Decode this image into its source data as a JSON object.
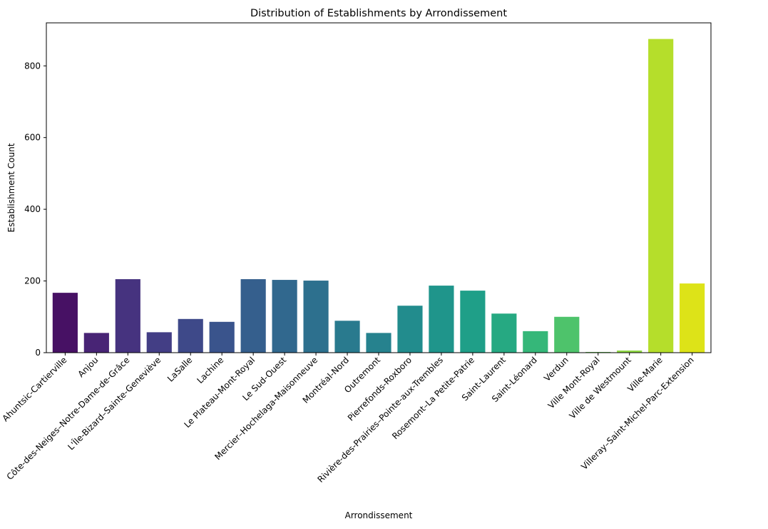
{
  "chart_data": {
    "type": "bar",
    "title": "Distribution of Establishments by Arrondissement",
    "xlabel": "Arrondissement",
    "ylabel": "Establishment Count",
    "ylim": [
      0,
      920
    ],
    "yticks": [
      0,
      200,
      400,
      600,
      800
    ],
    "grid": false,
    "legend": "none",
    "palette": "viridis",
    "categories": [
      "Ahuntsic-Cartierville",
      "Anjou",
      "Côte-des-Neiges–Notre-Dame-de-Grâce",
      "L'Île-Bizard–Sainte-Geneviève",
      "LaSalle",
      "Lachine",
      "Le Plateau-Mont-Royal",
      "Le Sud-Ouest",
      "Mercier–Hochelaga-Maisonneuve",
      "Montréal-Nord",
      "Outremont",
      "Pierrefonds-Roxboro",
      "Rivière-des-Prairies–Pointe-aux-Trembles",
      "Rosemont–La Petite-Patrie",
      "Saint-Laurent",
      "Saint-Léonard",
      "Verdun",
      "Ville Mont-Royal",
      "Ville de Westmount",
      "Ville-Marie",
      "Villeray–Saint-Michel-Parc-Extension"
    ],
    "values": [
      167,
      55,
      205,
      57,
      94,
      86,
      205,
      203,
      201,
      89,
      55,
      131,
      187,
      173,
      109,
      60,
      100,
      2,
      6,
      875,
      193
    ],
    "colors": [
      "#471164",
      "#482475",
      "#46337f",
      "#433e85",
      "#3e4989",
      "#3a548c",
      "#355f8d",
      "#31688e",
      "#2d708e",
      "#297a8e",
      "#26828e",
      "#228c8d",
      "#1f958b",
      "#1f9f88",
      "#26a982",
      "#35b779",
      "#4ec36b",
      "#6ccd5a",
      "#8fd744",
      "#b5de2b",
      "#dde318"
    ]
  }
}
